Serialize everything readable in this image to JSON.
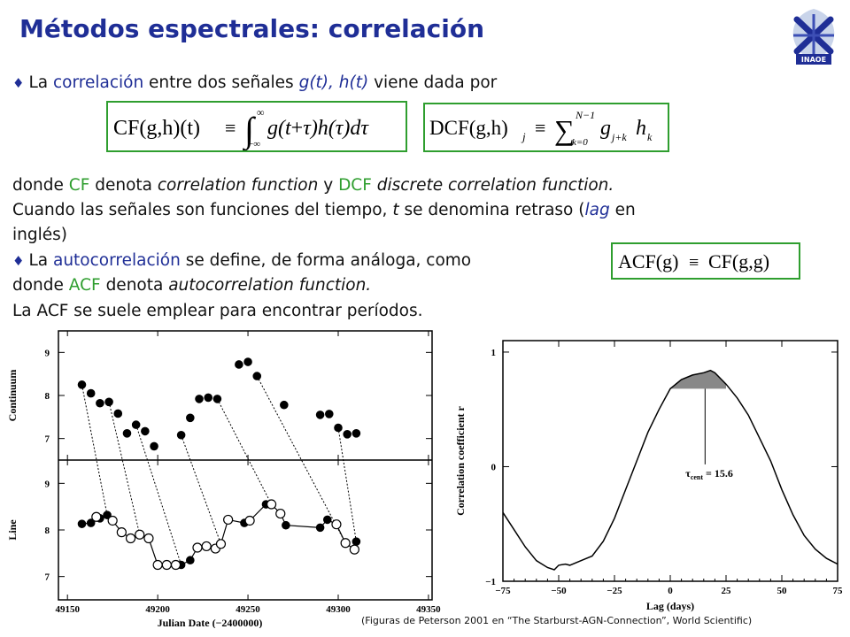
{
  "slide": {
    "title": "Métodos espectrales: correlación",
    "logo_text": "INAOE",
    "line1": {
      "pre": "La ",
      "term": "correlación",
      "mid": " entre dos señales ",
      "signals": "g(t), h(t)",
      "post": " viene dada por"
    },
    "eq_cf": {
      "lhs": "CF(g,h)(t)",
      "op": "≡",
      "upper": "∞",
      "lower": "−∞",
      "integrand_g": "g(t",
      "integrand_plus": "+",
      "integrand_tau": "τ",
      "integrand_h": ")h(",
      "integrand_tau2": "τ",
      "integrand_end": ")d",
      "integrand_dtau": "τ"
    },
    "eq_dcf": {
      "lhs": "DCF(g,h)",
      "lhs_sub": "j",
      "op": "≡",
      "sum_upper": "N−1",
      "sum_lower": "k=0",
      "term_g": "g",
      "term_g_sub": "j+k",
      "term_h": "h",
      "term_h_sub": "k"
    },
    "line2": {
      "a": "donde ",
      "cf": "CF",
      "b": " denota ",
      "cf_name": "correlation function",
      "c": " y ",
      "dcf": "DCF",
      "d": " ",
      "dcf_name": "discrete correlation function."
    },
    "line3": {
      "a": "Cuando las señales son funciones del tiempo, ",
      "t": "t",
      "b": " se denomina retraso (",
      "lag": "lag",
      "c": " en"
    },
    "line4": "inglés)",
    "line5": {
      "pre": "La ",
      "term": "autocorrelación",
      "post": " se define, de forma análoga, como"
    },
    "eq_acf": {
      "lhs": "ACF(g)",
      "op": "≡",
      "rhs": "CF(g,g)"
    },
    "line6": {
      "a": "donde ",
      "acf": "ACF",
      "b": " denota ",
      "acf_name": "autocorrelation function."
    },
    "line7": "La ACF se suele emplear para encontrar períodos.",
    "caption": "(Figuras de Peterson 2001 en “The Starburst-AGN-Connection”,  World Scientific)"
  },
  "colors": {
    "title": "#1f2e96",
    "term_green": "#2f9e2f",
    "term_blue": "#1f2e96",
    "box_border": "#2f9e2f"
  },
  "chart_data": [
    {
      "type": "scatter",
      "xlabel": "Julian Date (−2400000)",
      "x_ticks": [
        "49150",
        "49200",
        "49250",
        "49300",
        "49350"
      ],
      "xlim": [
        49145,
        49352
      ],
      "panels": [
        {
          "ylabel": "Continuum",
          "y_ticks": [
            "7",
            "8",
            "9"
          ],
          "ylim": [
            6.5,
            9.5
          ],
          "series": [
            {
              "style": "filled",
              "points": [
                [
                  49158,
                  8.25
                ],
                [
                  49163,
                  8.05
                ],
                [
                  49168,
                  7.82
                ],
                [
                  49173,
                  7.85
                ],
                [
                  49178,
                  7.58
                ],
                [
                  49183,
                  7.12
                ],
                [
                  49188,
                  7.32
                ],
                [
                  49193,
                  7.17
                ],
                [
                  49198,
                  6.82
                ],
                [
                  49213,
                  7.08
                ],
                [
                  49218,
                  7.48
                ],
                [
                  49223,
                  7.92
                ],
                [
                  49228,
                  7.95
                ],
                [
                  49233,
                  7.92
                ],
                [
                  49245,
                  8.72
                ],
                [
                  49250,
                  8.78
                ],
                [
                  49255,
                  8.45
                ],
                [
                  49270,
                  7.78
                ],
                [
                  49290,
                  7.55
                ],
                [
                  49295,
                  7.57
                ],
                [
                  49300,
                  7.25
                ],
                [
                  49305,
                  7.1
                ],
                [
                  49310,
                  7.12
                ]
              ]
            }
          ]
        },
        {
          "ylabel": "Line",
          "y_ticks": [
            "7",
            "8",
            "9"
          ],
          "ylim": [
            6.5,
            9.5
          ],
          "series": [
            {
              "style": "filled",
              "points": [
                [
                  49158,
                  8.13
                ],
                [
                  49163,
                  8.15
                ],
                [
                  49168,
                  8.25
                ],
                [
                  49172,
                  8.32
                ],
                [
                  49213,
                  7.25
                ],
                [
                  49218,
                  7.35
                ],
                [
                  49248,
                  8.15
                ],
                [
                  49260,
                  8.55
                ],
                [
                  49271,
                  8.1
                ],
                [
                  49290,
                  8.05
                ],
                [
                  49294,
                  8.22
                ],
                [
                  49310,
                  7.75
                ]
              ]
            },
            {
              "style": "open",
              "points": [
                [
                  49166,
                  8.28
                ],
                [
                  49175,
                  8.2
                ],
                [
                  49180,
                  7.95
                ],
                [
                  49185,
                  7.82
                ],
                [
                  49190,
                  7.9
                ],
                [
                  49195,
                  7.82
                ],
                [
                  49200,
                  7.25
                ],
                [
                  49205,
                  7.25
                ],
                [
                  49210,
                  7.25
                ],
                [
                  49222,
                  7.62
                ],
                [
                  49227,
                  7.65
                ],
                [
                  49232,
                  7.6
                ],
                [
                  49235,
                  7.7
                ],
                [
                  49239,
                  8.22
                ],
                [
                  49251,
                  8.2
                ],
                [
                  49263,
                  8.55
                ],
                [
                  49268,
                  8.35
                ],
                [
                  49299,
                  8.12
                ],
                [
                  49304,
                  7.72
                ],
                [
                  49309,
                  7.58
                ]
              ]
            }
          ]
        }
      ]
    },
    {
      "type": "line",
      "xlabel": "Lag (days)",
      "ylabel": "Correlation coefficient r",
      "x_ticks": [
        "−75",
        "−50",
        "−25",
        "0",
        "25",
        "50",
        "75"
      ],
      "xlim": [
        -75,
        75
      ],
      "y_ticks": [
        "−1",
        "0",
        "1"
      ],
      "ylim": [
        -1,
        1.1
      ],
      "annotation": "τ",
      "annotation_sub": "cent",
      "annotation_value": " = 15.6",
      "centroid_lag": 15.6,
      "x": [
        -75,
        -70,
        -65,
        -60,
        -55,
        -52,
        -50,
        -47,
        -45,
        -40,
        -35,
        -30,
        -25,
        -20,
        -15,
        -10,
        -5,
        0,
        5,
        10,
        15,
        18,
        20,
        25,
        30,
        35,
        40,
        45,
        50,
        55,
        60,
        65,
        70,
        75
      ],
      "y": [
        -0.4,
        -0.55,
        -0.7,
        -0.82,
        -0.88,
        -0.9,
        -0.86,
        -0.85,
        -0.86,
        -0.82,
        -0.78,
        -0.65,
        -0.45,
        -0.2,
        0.05,
        0.3,
        0.5,
        0.68,
        0.76,
        0.8,
        0.82,
        0.84,
        0.82,
        0.72,
        0.6,
        0.45,
        0.25,
        0.05,
        -0.2,
        -0.42,
        -0.6,
        -0.72,
        -0.8,
        -0.85
      ]
    }
  ]
}
